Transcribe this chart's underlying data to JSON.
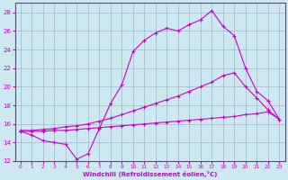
{
  "xlabel": "Windchill (Refroidissement éolien,°C)",
  "bg_color": "#cce8f0",
  "line_color": "#cc00cc",
  "grid_color": "#99aabb",
  "xlim": [
    -0.5,
    23.5
  ],
  "ylim": [
    12,
    29
  ],
  "xticks": [
    0,
    1,
    2,
    3,
    4,
    5,
    6,
    7,
    8,
    9,
    10,
    11,
    12,
    13,
    14,
    15,
    16,
    17,
    18,
    19,
    20,
    21,
    22,
    23
  ],
  "yticks": [
    12,
    14,
    16,
    18,
    20,
    22,
    24,
    26,
    28
  ],
  "line1_x": [
    0,
    1,
    2,
    3,
    4,
    5,
    6,
    7,
    8,
    9,
    10,
    11,
    12,
    13,
    14,
    15,
    16,
    17,
    18,
    19,
    20,
    21,
    22,
    23
  ],
  "line1_y": [
    15.2,
    14.8,
    14.2,
    14.0,
    13.8,
    12.2,
    12.8,
    15.5,
    18.2,
    20.2,
    23.8,
    25.0,
    25.8,
    26.3,
    26.0,
    26.7,
    27.2,
    28.2,
    26.5,
    25.5,
    22.0,
    19.5,
    18.5,
    16.5
  ],
  "line2_x": [
    0,
    1,
    2,
    3,
    4,
    5,
    6,
    7,
    8,
    9,
    10,
    11,
    12,
    13,
    14,
    15,
    16,
    17,
    18,
    19,
    20,
    21,
    22,
    23
  ],
  "line2_y": [
    15.3,
    15.3,
    15.4,
    15.5,
    15.7,
    15.8,
    16.0,
    16.3,
    16.6,
    17.0,
    17.4,
    17.8,
    18.2,
    18.6,
    19.0,
    19.5,
    20.0,
    20.5,
    21.2,
    21.5,
    20.0,
    18.8,
    17.5,
    16.5
  ],
  "line3_x": [
    0,
    1,
    2,
    3,
    4,
    5,
    6,
    7,
    8,
    9,
    10,
    11,
    12,
    13,
    14,
    15,
    16,
    17,
    18,
    19,
    20,
    21,
    22,
    23
  ],
  "line3_y": [
    15.2,
    15.2,
    15.2,
    15.3,
    15.3,
    15.4,
    15.5,
    15.6,
    15.7,
    15.8,
    15.9,
    16.0,
    16.1,
    16.2,
    16.3,
    16.4,
    16.5,
    16.6,
    16.7,
    16.8,
    17.0,
    17.1,
    17.3,
    16.5
  ]
}
